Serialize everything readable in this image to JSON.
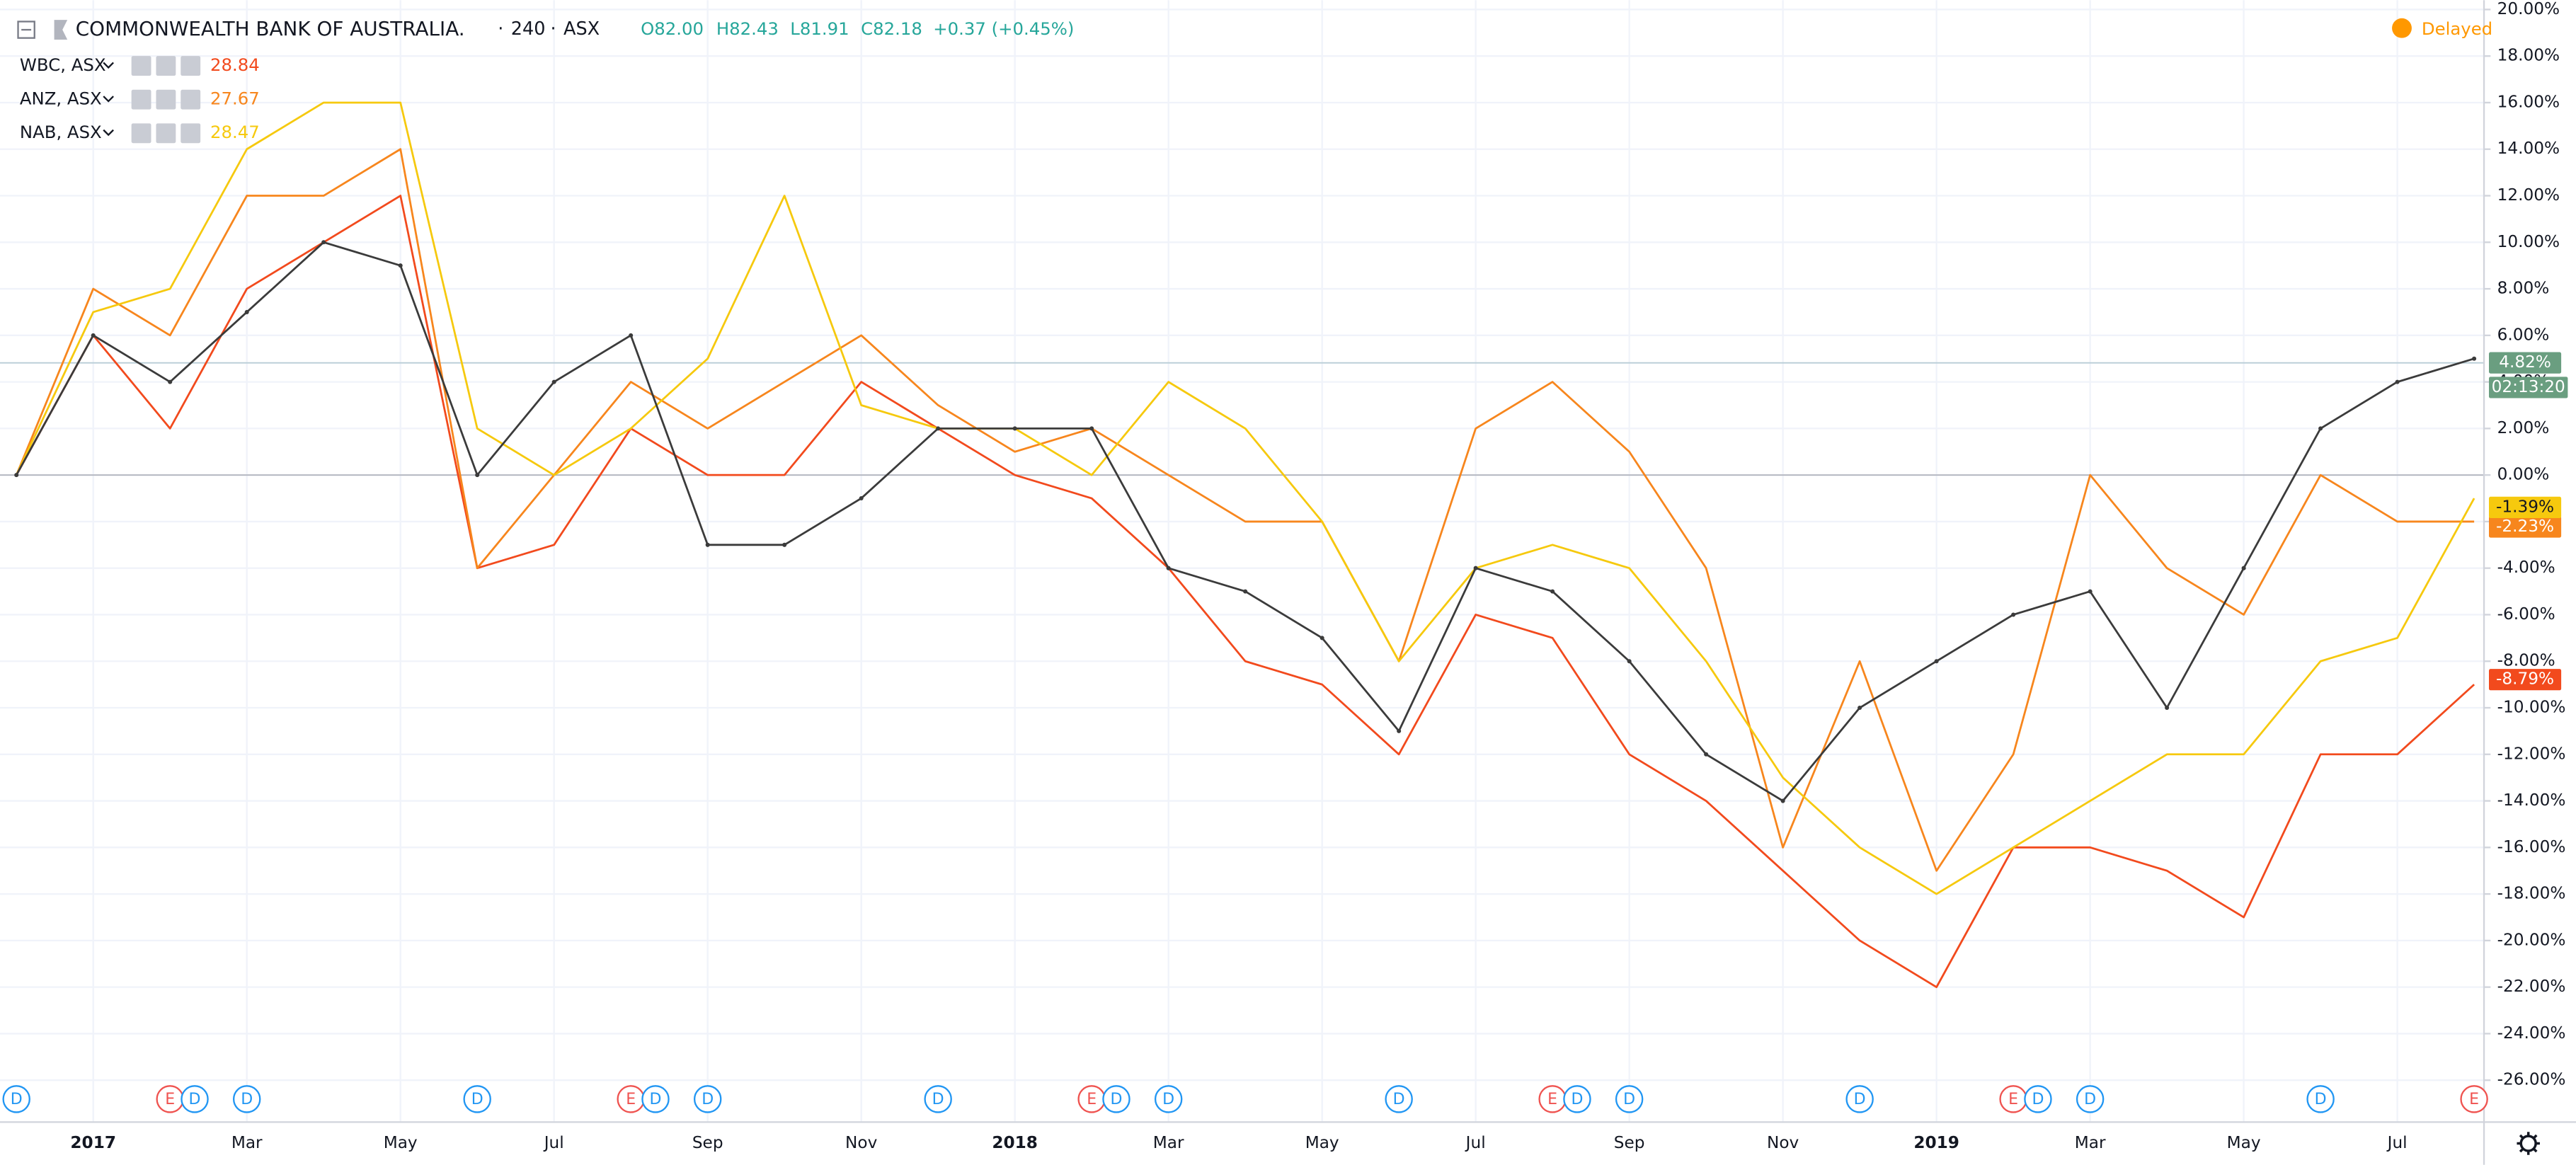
{
  "header": {
    "title": "COMMONWEALTH BANK OF AUSTRALIA.",
    "interval": "240",
    "exchange": "ASX",
    "open": "O82.00",
    "high": "H82.43",
    "low": "L81.91",
    "close": "C82.18",
    "change": "+0.37 (+0.45%)",
    "status": "Delayed"
  },
  "chart_data": {
    "type": "line",
    "xlim": [
      "2016-12",
      "2019-08"
    ],
    "ylim": [
      -27.8,
      20.4
    ],
    "grid": true,
    "xticks": [
      {
        "value": "2017-01",
        "label": "2017"
      },
      {
        "value": "2017-03",
        "label": "Mar"
      },
      {
        "value": "2017-05",
        "label": "May"
      },
      {
        "value": "2017-07",
        "label": "Jul"
      },
      {
        "value": "2017-09",
        "label": "Sep"
      },
      {
        "value": "2017-11",
        "label": "Nov"
      },
      {
        "value": "2018-01",
        "label": "2018"
      },
      {
        "value": "2018-03",
        "label": "Mar"
      },
      {
        "value": "2018-05",
        "label": "May"
      },
      {
        "value": "2018-07",
        "label": "Jul"
      },
      {
        "value": "2018-09",
        "label": "Sep"
      },
      {
        "value": "2018-11",
        "label": "Nov"
      },
      {
        "value": "2019-01",
        "label": "2019"
      },
      {
        "value": "2019-03",
        "label": "Mar"
      },
      {
        "value": "2019-05",
        "label": "May"
      },
      {
        "value": "2019-07",
        "label": "Jul"
      }
    ],
    "yticks": [
      {
        "value": 20,
        "label": "20.00%"
      },
      {
        "value": 18,
        "label": "18.00%"
      },
      {
        "value": 16,
        "label": "16.00%"
      },
      {
        "value": 14,
        "label": "14.00%"
      },
      {
        "value": 12,
        "label": "12.00%"
      },
      {
        "value": 10,
        "label": "10.00%"
      },
      {
        "value": 8,
        "label": "8.00%"
      },
      {
        "value": 6,
        "label": "6.00%"
      },
      {
        "value": 4,
        "label": "4.00%"
      },
      {
        "value": 2,
        "label": "2.00%"
      },
      {
        "value": 0,
        "label": "0.00%"
      },
      {
        "value": -2,
        "label": "-2.00%"
      },
      {
        "value": -4,
        "label": "-4.00%"
      },
      {
        "value": -6,
        "label": "-6.00%"
      },
      {
        "value": -8,
        "label": "-8.00%"
      },
      {
        "value": -10,
        "label": "-10.00%"
      },
      {
        "value": -12,
        "label": "-12.00%"
      },
      {
        "value": -14,
        "label": "-14.00%"
      },
      {
        "value": -16,
        "label": "-16.00%"
      },
      {
        "value": -18,
        "label": "-18.00%"
      },
      {
        "value": -20,
        "label": "-20.00%"
      },
      {
        "value": -22,
        "label": "-22.00%"
      },
      {
        "value": -24,
        "label": "-24.00%"
      },
      {
        "value": -26,
        "label": "-26.00%"
      }
    ],
    "x": [
      "2016-12",
      "2017-01",
      "2017-02",
      "2017-03",
      "2017-04",
      "2017-05",
      "2017-06",
      "2017-07",
      "2017-08",
      "2017-09",
      "2017-10",
      "2017-11",
      "2017-12",
      "2018-01",
      "2018-02",
      "2018-03",
      "2018-04",
      "2018-05",
      "2018-06",
      "2018-07",
      "2018-08",
      "2018-09",
      "2018-10",
      "2018-11",
      "2018-12",
      "2019-01",
      "2019-02",
      "2019-03",
      "2019-04",
      "2019-05",
      "2019-06",
      "2019-07",
      "2019-08"
    ],
    "main": {
      "color": "#3b3b3b",
      "values": [
        0,
        6,
        4,
        7,
        10,
        9,
        0,
        4,
        6,
        -3,
        -3,
        -1,
        2,
        2,
        2,
        -4,
        -5,
        -7,
        -11,
        -4,
        -5,
        -8,
        -12,
        -14,
        -10,
        -8,
        -6,
        -5,
        -10,
        -4,
        2,
        4,
        5
      ],
      "badge": {
        "value": 4.82,
        "label": "4.82%",
        "color": "#6a9e80"
      },
      "countdown": "02:13:20"
    },
    "series": [
      {
        "name": "WBC, ASX",
        "price": "28.84",
        "color": "#f24a1d",
        "values": [
          0,
          6,
          2,
          8,
          10,
          12,
          -4,
          -3,
          2,
          0,
          0,
          4,
          2,
          0,
          -1,
          -4,
          -8,
          -9,
          -12,
          -6,
          -7,
          -12,
          -14,
          -17,
          -20,
          -22,
          -16,
          -16,
          -17,
          -19,
          -12,
          -12,
          -9
        ],
        "badge": {
          "value": -8.79,
          "label": "-8.79%",
          "color": "#f24a1d"
        }
      },
      {
        "name": "ANZ, ASX",
        "price": "27.67",
        "color": "#f7861d",
        "values": [
          0,
          8,
          6,
          12,
          12,
          14,
          -4,
          0,
          4,
          2,
          4,
          6,
          3,
          1,
          2,
          0,
          -2,
          -2,
          -8,
          2,
          4,
          1,
          -4,
          -16,
          -8,
          -17,
          -12,
          0,
          -4,
          -6,
          0,
          -2,
          -2
        ],
        "badge": {
          "value": -2.23,
          "label": "-2.23%",
          "color": "#f7861d"
        }
      },
      {
        "name": "NAB, ASX",
        "price": "28.47",
        "color": "#f6c90e",
        "values": [
          0,
          7,
          8,
          14,
          16,
          16,
          2,
          0,
          2,
          5,
          12,
          3,
          2,
          2,
          0,
          4,
          2,
          -2,
          -8,
          -4,
          -3,
          -4,
          -8,
          -13,
          -16,
          -18,
          -16,
          -14,
          -12,
          -12,
          -8,
          -7,
          -1
        ],
        "badge": {
          "value": -1.39,
          "label": "-1.39%",
          "color": "#f6c90e"
        }
      }
    ],
    "event_colors": {
      "D": "#2196f3",
      "E": "#ef5350"
    },
    "events": [
      {
        "x": "2016-12",
        "label": "D"
      },
      {
        "x": "2017-02",
        "label": "E"
      },
      {
        "x": "2017-02",
        "label": "D"
      },
      {
        "x": "2017-03",
        "label": "D"
      },
      {
        "x": "2017-06",
        "label": "D"
      },
      {
        "x": "2017-08",
        "label": "E"
      },
      {
        "x": "2017-08",
        "label": "D"
      },
      {
        "x": "2017-09",
        "label": "D"
      },
      {
        "x": "2017-12",
        "label": "D"
      },
      {
        "x": "2018-02",
        "label": "E"
      },
      {
        "x": "2018-02",
        "label": "D"
      },
      {
        "x": "2018-03",
        "label": "D"
      },
      {
        "x": "2018-06",
        "label": "D"
      },
      {
        "x": "2018-08",
        "label": "E"
      },
      {
        "x": "2018-08",
        "label": "D"
      },
      {
        "x": "2018-09",
        "label": "D"
      },
      {
        "x": "2018-12",
        "label": "D"
      },
      {
        "x": "2019-02",
        "label": "E"
      },
      {
        "x": "2019-02",
        "label": "D"
      },
      {
        "x": "2019-03",
        "label": "D"
      },
      {
        "x": "2019-06",
        "label": "D"
      },
      {
        "x": "2019-08",
        "label": "E"
      }
    ]
  }
}
